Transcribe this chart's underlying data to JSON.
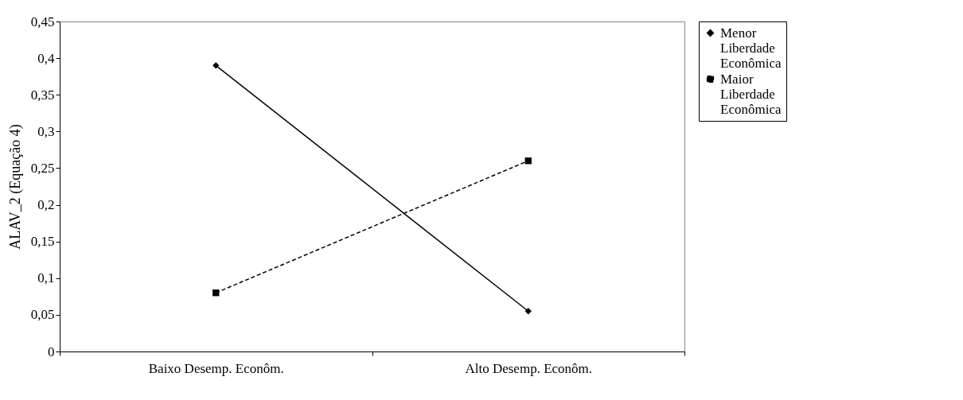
{
  "chart_data": {
    "type": "line",
    "ylabel": "ALAV_2 (Equação 4)",
    "categories": [
      "Baixo Desemp. Econôm.",
      "Alto Desemp. Econôm."
    ],
    "series": [
      {
        "name": "Menor Liberdade Econômica",
        "color": "#000000",
        "values": [
          0.39,
          0.055
        ],
        "marker": "diamond",
        "line_style": "solid"
      },
      {
        "name": "Maior Liberdade Econômica",
        "color": "#000000",
        "values": [
          0.08,
          0.26
        ],
        "marker": "square",
        "line_style": "dashed"
      }
    ],
    "ylim": [
      0,
      0.45
    ],
    "yticks": [
      {
        "value": 0,
        "label": "0"
      },
      {
        "value": 0.05,
        "label": "0,05"
      },
      {
        "value": 0.1,
        "label": "0,1"
      },
      {
        "value": 0.15,
        "label": "0,15"
      },
      {
        "value": 0.2,
        "label": "0,2"
      },
      {
        "value": 0.25,
        "label": "0,25"
      },
      {
        "value": 0.3,
        "label": "0,3"
      },
      {
        "value": 0.35,
        "label": "0,35"
      },
      {
        "value": 0.4,
        "label": "0,4"
      },
      {
        "value": 0.45,
        "label": "0,45"
      }
    ],
    "grid": false,
    "legend": "right"
  }
}
